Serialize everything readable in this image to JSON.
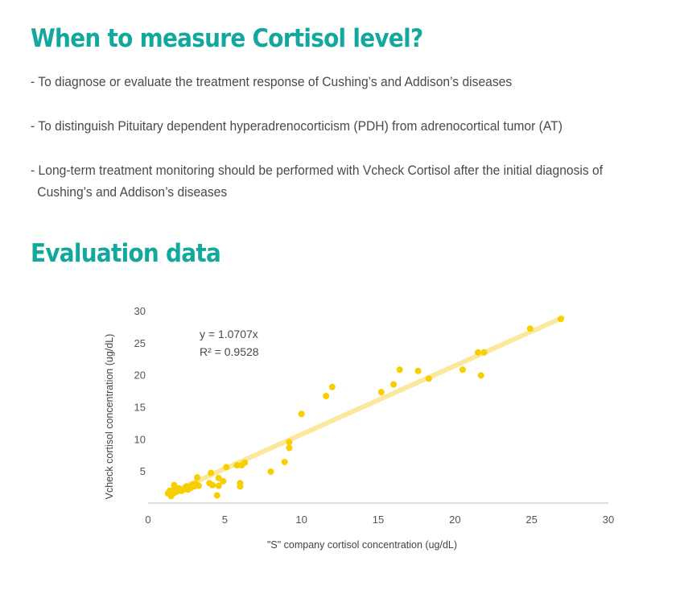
{
  "section1": {
    "title": "When to measure Cortisol level?",
    "bullets": [
      "- To diagnose or evaluate the treatment response of Cushing’s and Addison’s diseases",
      "- To distinguish Pituitary dependent hyperadrenocorticism (PDH) from adrenocortical tumor (AT)",
      "- Long-term treatment monitoring should be performed with Vcheck Cortisol after the initial diagnosis of Cushing’s and Addison’s diseases"
    ]
  },
  "section2": {
    "title": "Evaluation data"
  },
  "colors": {
    "accent": "#13a89e",
    "point": "#f7cf00",
    "trendline": "#fbe89c"
  },
  "chart_data": {
    "type": "scatter",
    "xlabel": "\"S\" company cortisol concentration (ug/dL)",
    "ylabel": "Vcheck cortisol concentration (ug/dL)",
    "xlim": [
      0,
      30
    ],
    "ylim": [
      0,
      30
    ],
    "x_ticks": [
      "0",
      "5",
      "10",
      "15",
      "20",
      "25",
      "30"
    ],
    "y_ticks": [
      "5",
      "10",
      "15",
      "20",
      "25",
      "30"
    ],
    "grid": false,
    "annotations": [
      "y = 1.0707x",
      "R² = 0.9528"
    ],
    "trendline": {
      "slope": 1.0707,
      "intercept": 0,
      "x_range": [
        1.3,
        27
      ]
    },
    "points": [
      [
        1.3,
        1.5
      ],
      [
        1.4,
        1.9
      ],
      [
        1.5,
        1.1
      ],
      [
        1.6,
        2.0
      ],
      [
        1.7,
        1.6
      ],
      [
        1.7,
        2.8
      ],
      [
        1.8,
        2.2
      ],
      [
        1.9,
        1.8
      ],
      [
        2.0,
        2.3
      ],
      [
        2.1,
        2.0
      ],
      [
        2.2,
        1.9
      ],
      [
        2.3,
        2.1
      ],
      [
        2.4,
        2.2
      ],
      [
        2.5,
        2.6
      ],
      [
        2.6,
        2.1
      ],
      [
        2.7,
        2.5
      ],
      [
        2.8,
        2.4
      ],
      [
        2.9,
        2.9
      ],
      [
        3.0,
        2.6
      ],
      [
        3.1,
        3.0
      ],
      [
        3.2,
        4.0
      ],
      [
        3.3,
        2.7
      ],
      [
        4.0,
        3.1
      ],
      [
        4.1,
        4.7
      ],
      [
        4.2,
        2.8
      ],
      [
        4.5,
        1.2
      ],
      [
        4.6,
        2.7
      ],
      [
        4.6,
        3.9
      ],
      [
        4.9,
        3.4
      ],
      [
        5.1,
        5.6
      ],
      [
        5.8,
        5.9
      ],
      [
        6.0,
        2.6
      ],
      [
        6.0,
        3.1
      ],
      [
        6.1,
        5.9
      ],
      [
        6.3,
        6.3
      ],
      [
        8.0,
        4.9
      ],
      [
        8.9,
        6.4
      ],
      [
        9.2,
        8.6
      ],
      [
        9.2,
        9.5
      ],
      [
        10.0,
        13.9
      ],
      [
        11.6,
        16.7
      ],
      [
        12.0,
        18.1
      ],
      [
        15.2,
        17.3
      ],
      [
        16.0,
        18.5
      ],
      [
        16.4,
        20.8
      ],
      [
        17.6,
        20.6
      ],
      [
        18.3,
        19.4
      ],
      [
        20.5,
        20.8
      ],
      [
        21.5,
        23.5
      ],
      [
        21.7,
        19.9
      ],
      [
        21.9,
        23.5
      ],
      [
        24.9,
        27.2
      ],
      [
        26.9,
        28.7
      ]
    ]
  }
}
